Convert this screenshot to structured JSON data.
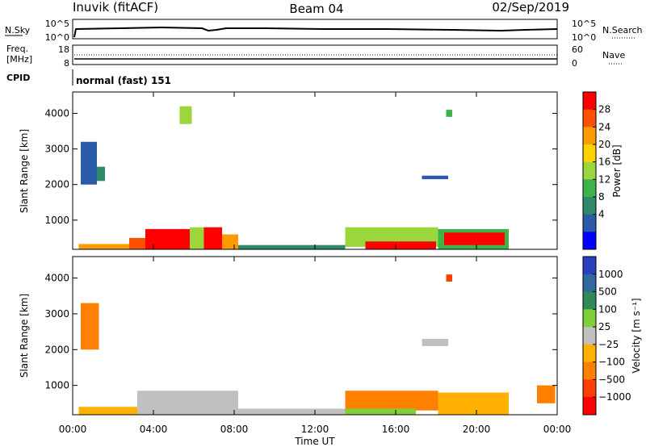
{
  "header": {
    "station": "Inuvik (fitACF)",
    "beam": "Beam 04",
    "date": "02/Sep/2019"
  },
  "summary_panels": {
    "nsky": {
      "label": "N.Sky",
      "ticks_left": [
        "10^5",
        "10^0"
      ],
      "ticks_right": [
        "10^5",
        "10^0"
      ],
      "right_label": "N.Search"
    },
    "freq": {
      "label_line1": "Freq.",
      "label_line2": "[MHz]",
      "ticks_left": [
        "18",
        "8"
      ],
      "ticks_right": [
        "60",
        "0"
      ],
      "right_label": "Nave"
    },
    "cpid": {
      "label": "CPID",
      "value": "normal (fast) 151"
    }
  },
  "time_axis": {
    "title": "Time UT",
    "ticks": [
      "00:00",
      "04:00",
      "08:00",
      "12:00",
      "16:00",
      "20:00",
      "00:00"
    ]
  },
  "chart_data": [
    {
      "type": "heatmap",
      "name": "power",
      "ylabel": "Slant Range [km]",
      "yticks": [
        1000,
        2000,
        3000,
        4000
      ],
      "ylim": [
        180,
        4600
      ],
      "xlim": [
        0,
        24
      ],
      "colorbar": {
        "label": "Power [dB]",
        "tick_labels": [
          "28",
          "24",
          "20",
          "16",
          "12",
          "8",
          "4"
        ],
        "colors": [
          "#ff0000",
          "#ff5000",
          "#ff9a00",
          "#ffd000",
          "#9ad63c",
          "#3cb44a",
          "#2e8a6a",
          "#2a5aa8",
          "#0000ff"
        ]
      },
      "regions": [
        {
          "t0": 0.3,
          "t1": 2.8,
          "r0": 180,
          "r1": 330,
          "level": 2
        },
        {
          "t0": 2.8,
          "t1": 3.6,
          "r0": 180,
          "r1": 500,
          "level": 1
        },
        {
          "t0": 3.6,
          "t1": 5.8,
          "r0": 180,
          "r1": 750,
          "level": 0
        },
        {
          "t0": 5.8,
          "t1": 6.5,
          "r0": 180,
          "r1": 800,
          "level": 4
        },
        {
          "t0": 6.5,
          "t1": 7.4,
          "r0": 180,
          "r1": 800,
          "level": 0
        },
        {
          "t0": 7.4,
          "t1": 8.2,
          "r0": 180,
          "r1": 600,
          "level": 2
        },
        {
          "t0": 8.2,
          "t1": 13.5,
          "r0": 180,
          "r1": 300,
          "level": 6
        },
        {
          "t0": 13.5,
          "t1": 18.1,
          "r0": 250,
          "r1": 800,
          "level": 4
        },
        {
          "t0": 14.5,
          "t1": 18.0,
          "r0": 180,
          "r1": 400,
          "level": 0
        },
        {
          "t0": 18.1,
          "t1": 21.6,
          "r0": 180,
          "r1": 750,
          "level": 5
        },
        {
          "t0": 18.4,
          "t1": 21.4,
          "r0": 300,
          "r1": 650,
          "level": 0
        },
        {
          "t0": 0.4,
          "t1": 1.2,
          "r0": 2000,
          "r1": 3200,
          "level": 7
        },
        {
          "t0": 1.2,
          "t1": 1.6,
          "r0": 2100,
          "r1": 2500,
          "level": 6
        },
        {
          "t0": 17.3,
          "t1": 18.6,
          "r0": 2150,
          "r1": 2250,
          "level": 7
        },
        {
          "t0": 5.3,
          "t1": 5.9,
          "r0": 3700,
          "r1": 4200,
          "level": 4
        },
        {
          "t0": 18.5,
          "t1": 18.8,
          "r0": 3900,
          "r1": 4100,
          "level": 5
        }
      ]
    },
    {
      "type": "heatmap",
      "name": "velocity",
      "ylabel": "Slant Range [km]",
      "yticks": [
        1000,
        2000,
        3000,
        4000
      ],
      "ylim": [
        180,
        4600
      ],
      "xlim": [
        0,
        24
      ],
      "colorbar": {
        "label": "Velocity [m s⁻¹]",
        "tick_labels": [
          "1000",
          "500",
          "100",
          "25",
          "−25",
          "−100",
          "−500",
          "−1000"
        ],
        "colors": [
          "#2a3fbf",
          "#2e6aa0",
          "#2f8a5a",
          "#7ecf3a",
          "#c0c0c0",
          "#ffb000",
          "#ff8000",
          "#ff4000",
          "#ff0000"
        ]
      },
      "regions": [
        {
          "t0": 0.3,
          "t1": 3.2,
          "r0": 180,
          "r1": 400,
          "level": 5
        },
        {
          "t0": 3.2,
          "t1": 8.2,
          "r0": 180,
          "r1": 850,
          "level": 4
        },
        {
          "t0": 8.2,
          "t1": 13.5,
          "r0": 180,
          "r1": 350,
          "level": 4
        },
        {
          "t0": 13.5,
          "t1": 18.1,
          "r0": 300,
          "r1": 850,
          "level": 6
        },
        {
          "t0": 13.5,
          "t1": 17.0,
          "r0": 180,
          "r1": 350,
          "level": 3
        },
        {
          "t0": 18.1,
          "t1": 21.6,
          "r0": 180,
          "r1": 800,
          "level": 5
        },
        {
          "t0": 23.0,
          "t1": 23.9,
          "r0": 500,
          "r1": 1000,
          "level": 6
        },
        {
          "t0": 0.4,
          "t1": 1.3,
          "r0": 2000,
          "r1": 3300,
          "level": 6
        },
        {
          "t0": 17.3,
          "t1": 18.6,
          "r0": 2100,
          "r1": 2300,
          "level": 4
        },
        {
          "t0": 18.5,
          "t1": 18.8,
          "r0": 3900,
          "r1": 4100,
          "level": 7
        }
      ]
    }
  ]
}
